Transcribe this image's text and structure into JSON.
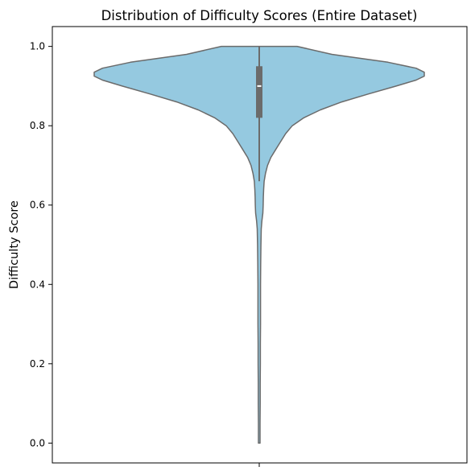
{
  "chart_data": {
    "type": "violin",
    "title": "Distribution of Difficulty Scores (Entire Dataset)",
    "xlabel": "",
    "ylabel": "Difficulty Score",
    "ylim": [
      -0.05,
      1.05
    ],
    "yticks": [
      0.0,
      0.2,
      0.4,
      0.6,
      0.8,
      1.0
    ],
    "ytick_labels": [
      "0.0",
      "0.2",
      "0.4",
      "0.6",
      "0.8",
      "1.0"
    ],
    "xticks": [
      ""
    ],
    "grid": false,
    "violin": {
      "fill_color": "#95c9e0",
      "edge_color": "#6b6b6b",
      "data_min": 0.0,
      "data_max": 1.0,
      "density_profile": [
        [
          1.0,
          0.23
        ],
        [
          0.98,
          0.44
        ],
        [
          0.96,
          0.78
        ],
        [
          0.945,
          0.95
        ],
        [
          0.935,
          1.0
        ],
        [
          0.925,
          1.0
        ],
        [
          0.915,
          0.95
        ],
        [
          0.9,
          0.83
        ],
        [
          0.88,
          0.66
        ],
        [
          0.86,
          0.5
        ],
        [
          0.84,
          0.37
        ],
        [
          0.82,
          0.27
        ],
        [
          0.8,
          0.2
        ],
        [
          0.78,
          0.16
        ],
        [
          0.76,
          0.13
        ],
        [
          0.74,
          0.1
        ],
        [
          0.72,
          0.07
        ],
        [
          0.7,
          0.05
        ],
        [
          0.68,
          0.038
        ],
        [
          0.66,
          0.03
        ],
        [
          0.64,
          0.027
        ],
        [
          0.62,
          0.025
        ],
        [
          0.6,
          0.024
        ],
        [
          0.58,
          0.022
        ],
        [
          0.56,
          0.016
        ],
        [
          0.54,
          0.012
        ],
        [
          0.5,
          0.01
        ],
        [
          0.45,
          0.009
        ],
        [
          0.4,
          0.008
        ],
        [
          0.35,
          0.008
        ],
        [
          0.3,
          0.008
        ],
        [
          0.25,
          0.007
        ],
        [
          0.2,
          0.007
        ],
        [
          0.15,
          0.006
        ],
        [
          0.1,
          0.006
        ],
        [
          0.05,
          0.005
        ],
        [
          0.0,
          0.005
        ]
      ]
    },
    "box": {
      "q1": 0.82,
      "median": 0.9,
      "q3": 0.95,
      "whisker_low": 0.66,
      "whisker_high": 1.0,
      "color": "#6b6b6b",
      "median_color": "#ffffff"
    }
  }
}
